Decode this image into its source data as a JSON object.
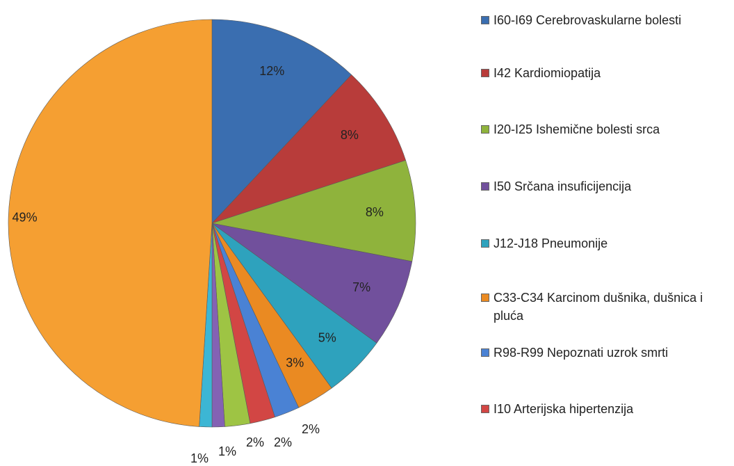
{
  "chart_data": {
    "type": "pie",
    "categories": [
      "I60-I69 Cerebrovaskularne bolesti",
      "I42 Kardiomiopatija",
      "I20-I25 Ishemične bolesti srca",
      "I50 Srčana insuficijencija",
      "J12-J18 Pneumonije",
      "C33-C34 Karcinom dušnika, dušnica i pluća",
      "R98-R99 Nepoznati uzrok smrti",
      "I10 Arterijska hipertenzija",
      null,
      null,
      null,
      null
    ],
    "values": [
      12,
      8,
      8,
      7,
      5,
      3,
      2,
      2,
      2,
      1,
      1,
      49
    ],
    "value_labels": [
      "12%",
      "8%",
      "8%",
      "7%",
      "5%",
      "3%",
      "2%",
      "2%",
      "2%",
      "1%",
      "1%",
      "49%"
    ],
    "colors": [
      "#3a6eb0",
      "#b83c3a",
      "#8fb33c",
      "#71509c",
      "#2ea2bd",
      "#ea8a22",
      "#4a82d4",
      "#d24644",
      "#9ec444",
      "#8462b4",
      "#3cb6d4",
      "#f59f32"
    ],
    "legend": "right"
  }
}
